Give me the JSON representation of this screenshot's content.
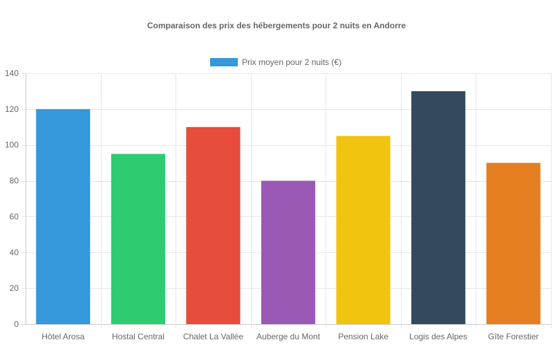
{
  "chart_data": {
    "type": "bar",
    "title": "Comparaison des prix des hébergements pour 2 nuits en Andorre",
    "xlabel": "",
    "ylabel": "",
    "legend": {
      "position": "top",
      "entries": [
        "Prix moyen pour 2 nuits (€)"
      ]
    },
    "categories": [
      "Hôtel Arosa",
      "Hostal Central",
      "Chalet La Vallée",
      "Auberge du Mont",
      "Pension Lake",
      "Logis des Alpes",
      "Gîte Forestier"
    ],
    "series": [
      {
        "name": "Prix moyen pour 2 nuits (€)",
        "values": [
          120,
          95,
          110,
          80,
          105,
          130,
          90
        ],
        "colors": [
          "#3498db",
          "#2ecc71",
          "#e74c3c",
          "#9b59b6",
          "#f1c40f",
          "#34495e",
          "#e67e22"
        ]
      }
    ],
    "ylim": [
      0,
      140
    ],
    "yticks": [
      0,
      20,
      40,
      60,
      80,
      100,
      120,
      140
    ],
    "grid": true,
    "legend_color": "#3498db"
  }
}
